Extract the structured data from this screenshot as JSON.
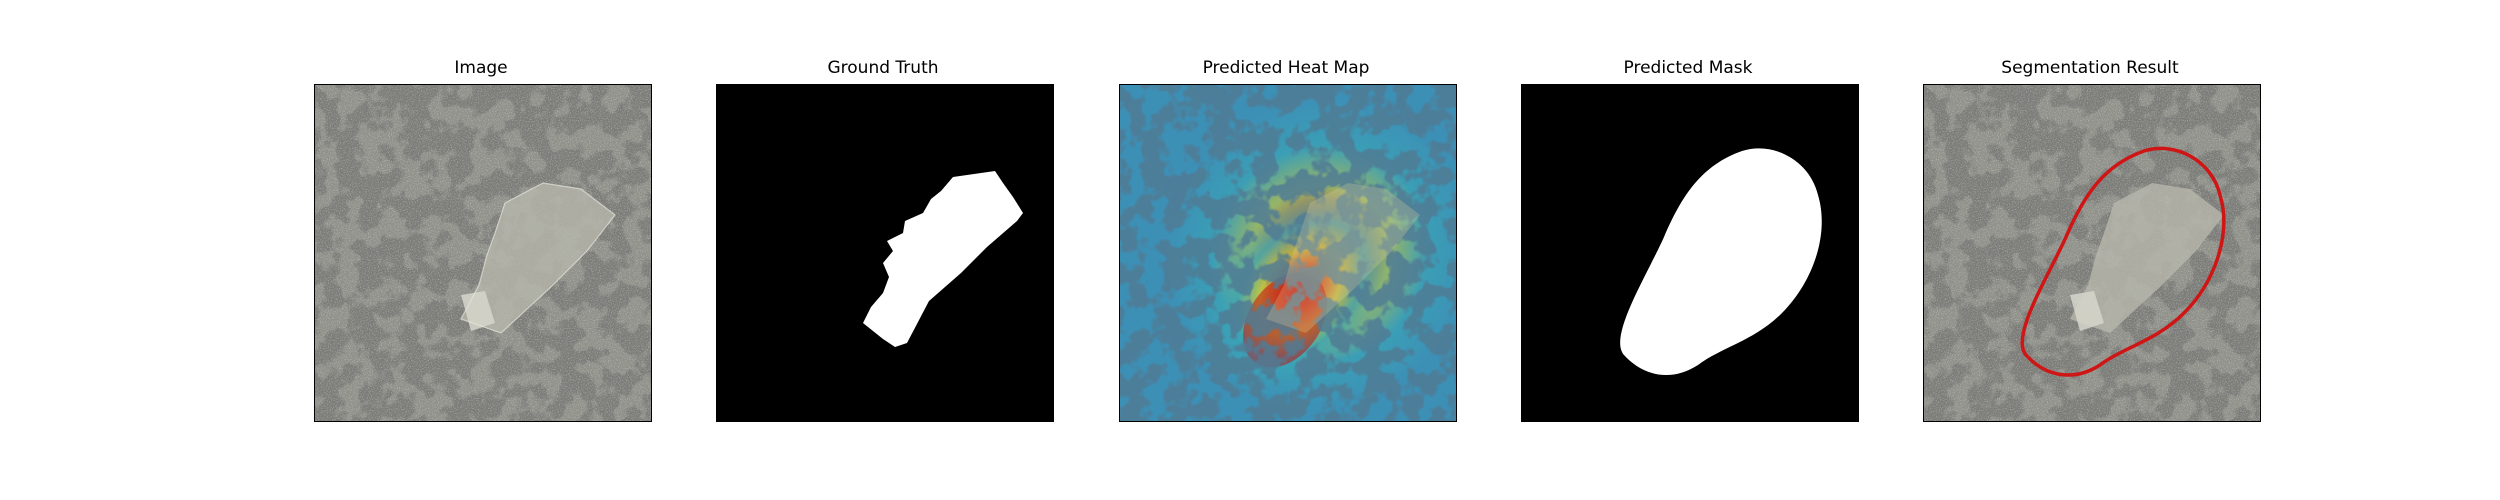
{
  "panels": [
    {
      "title": "Image"
    },
    {
      "title": "Ground Truth"
    },
    {
      "title": "Predicted Heat Map"
    },
    {
      "title": "Predicted Mask"
    },
    {
      "title": "Segmentation Result"
    }
  ],
  "colors": {
    "background": "#ffffff",
    "texture_base": "#8f918a",
    "texture_dark": "#2f302d",
    "object_fill": "#b9b9ad",
    "mask_black": "#000000",
    "mask_white": "#ffffff",
    "contour": "#d01515",
    "heat_cold": "#2f4f9f",
    "heat_cool": "#3aa6b5",
    "heat_mid": "#c8c83c",
    "heat_hot": "#e04a1a",
    "heat_peak": "#c21010"
  }
}
